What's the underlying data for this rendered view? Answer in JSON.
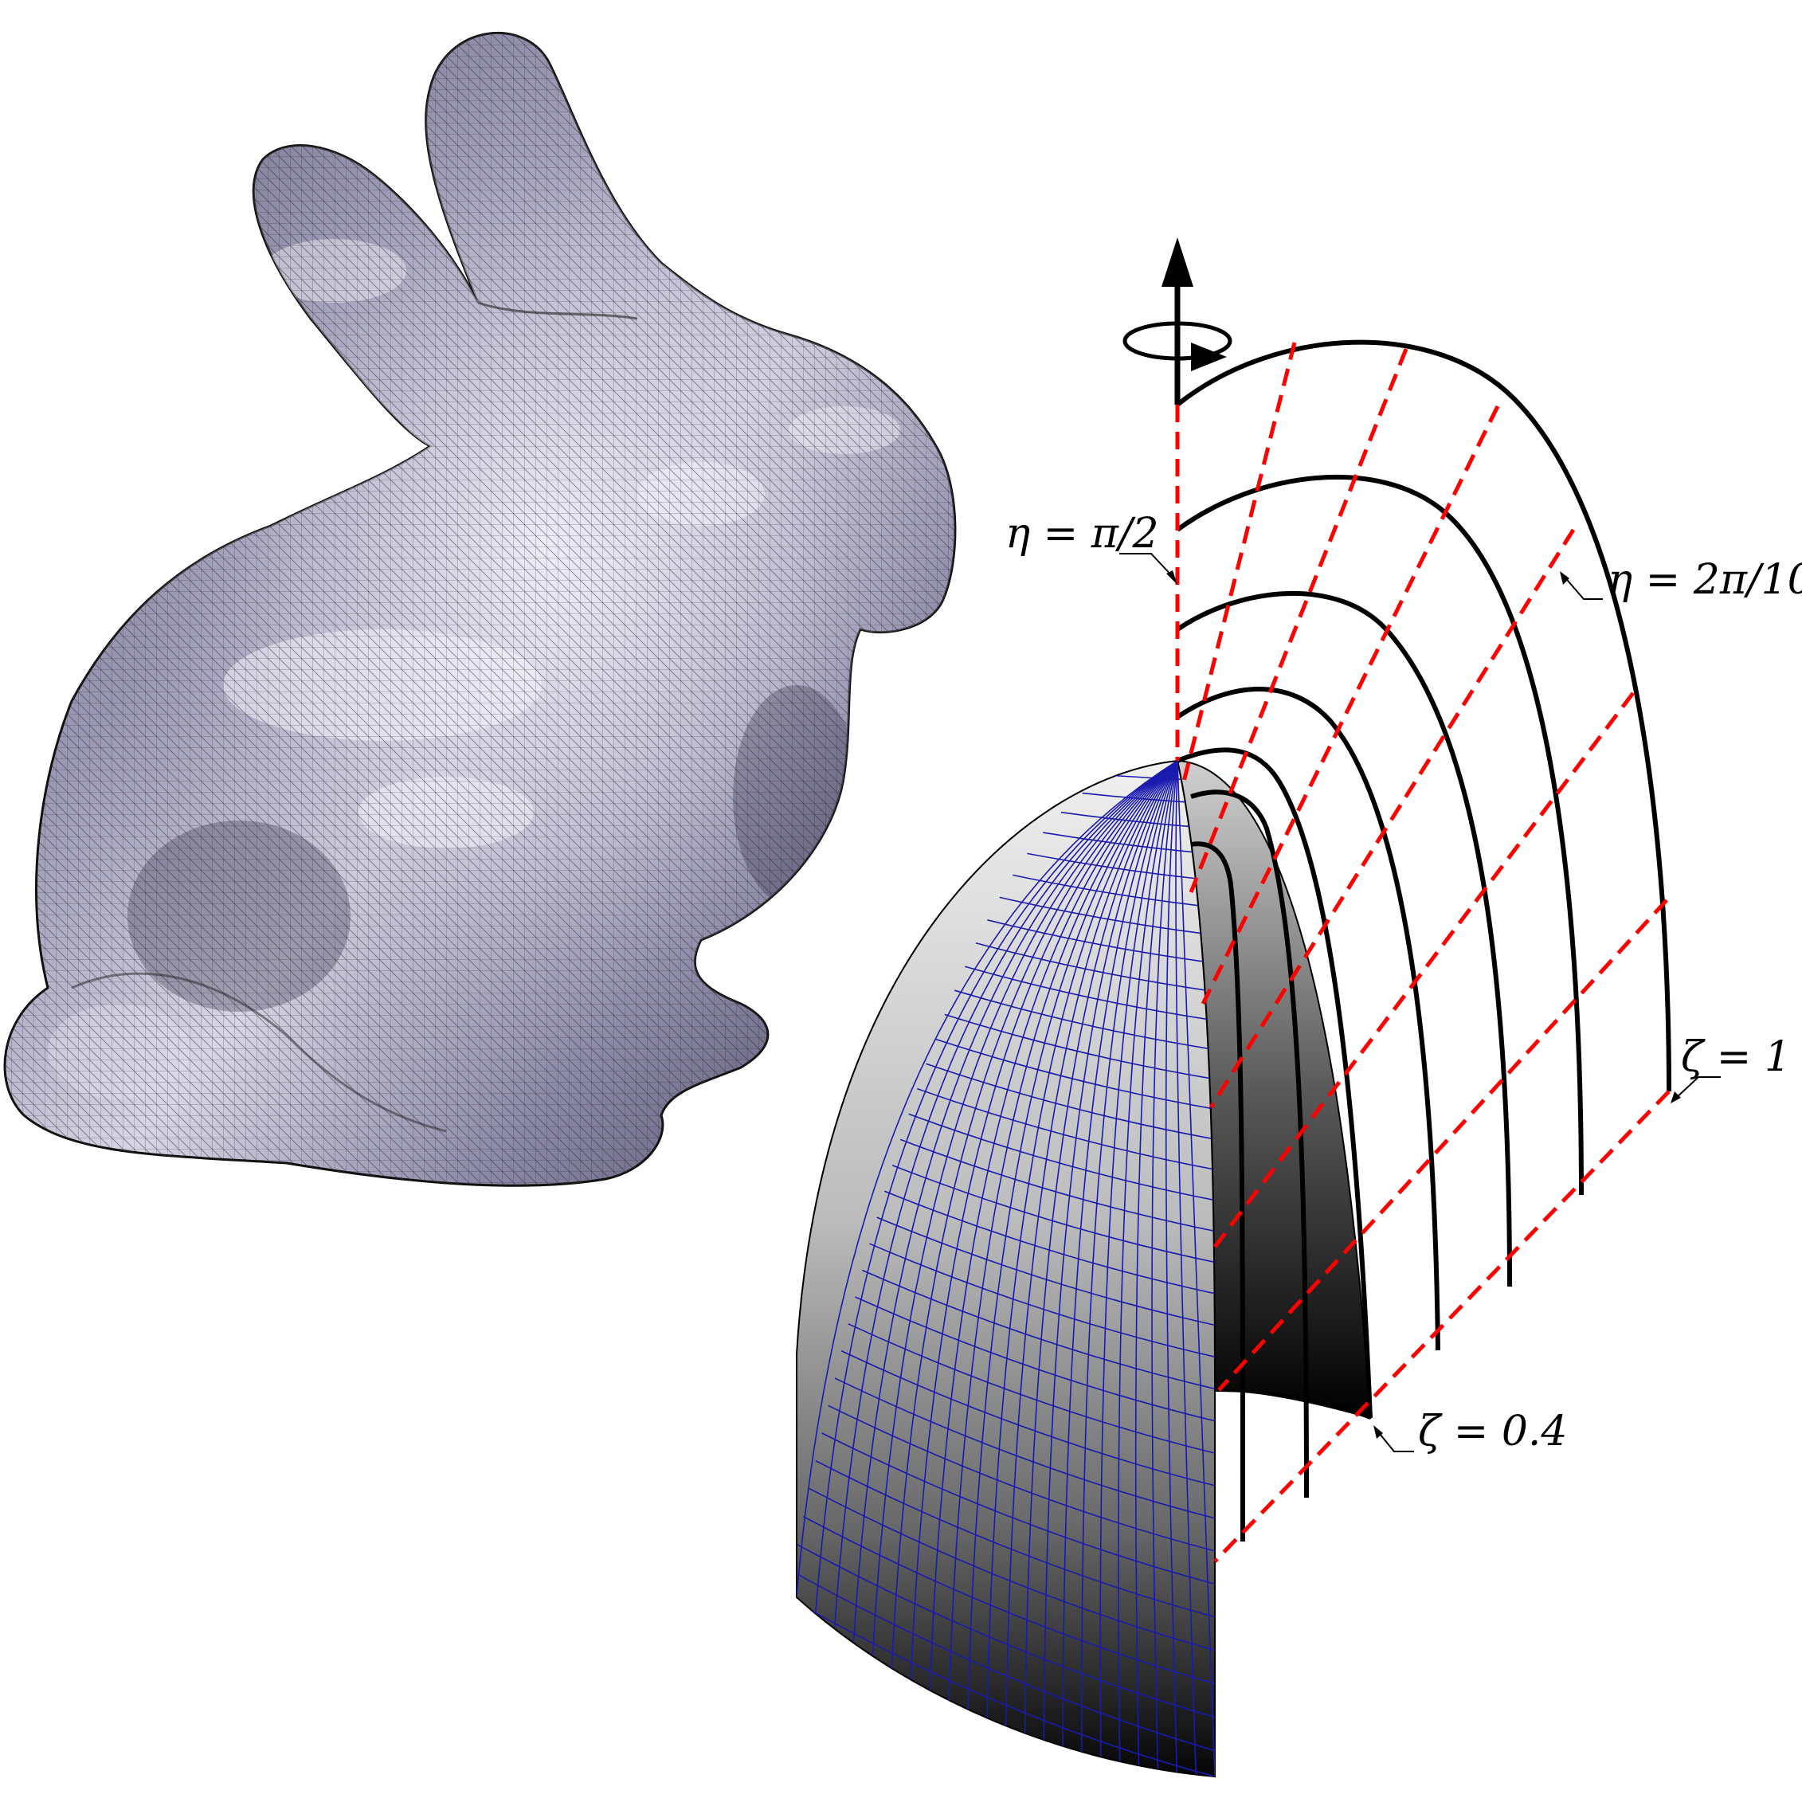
{
  "labels": {
    "eta_half_pi": "η = π/2",
    "eta_two_pi_ten": "η = 2π/10",
    "zeta_one": "ζ = 1",
    "zeta_zero_four": "ζ = 0.4"
  },
  "colors": {
    "bunny_fill": "#7f7d99",
    "bunny_highlight": "#e8e6f2",
    "bunny_mesh": "#222222",
    "shell_light": "#e6e6e6",
    "shell_dark": "#0a0a0a",
    "shell_grid": "#1a1ab0",
    "coord_lines": "#000000",
    "radial_lines": "#ff0000"
  },
  "icons": {
    "axis": "rotation-axis-arrow-icon"
  }
}
